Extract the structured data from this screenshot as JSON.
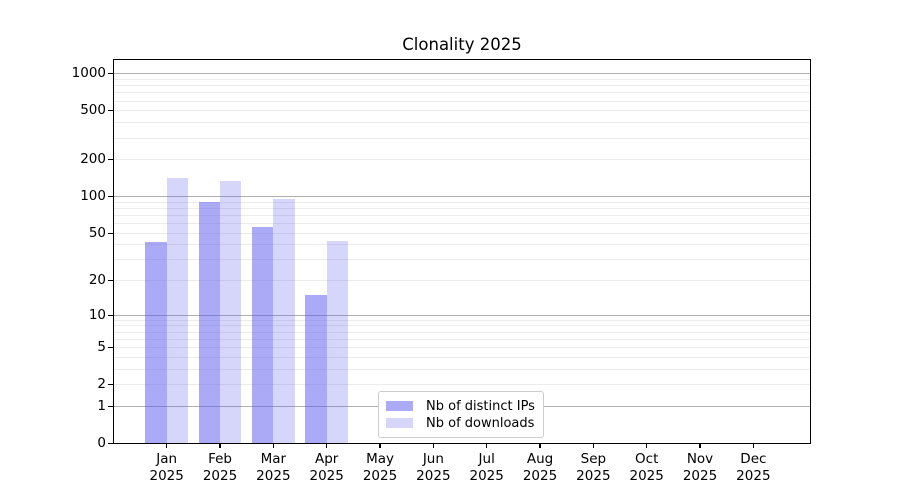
{
  "chart_data": {
    "type": "bar",
    "title": "Clonality 2025",
    "xlabel": "",
    "ylabel": "",
    "x_tick_second_line": "2025",
    "categories": [
      "Jan",
      "Feb",
      "Mar",
      "Apr",
      "May",
      "Jun",
      "Jul",
      "Aug",
      "Sep",
      "Oct",
      "Nov",
      "Dec"
    ],
    "series": [
      {
        "name": "Nb of distinct IPs",
        "color": "rgba(85,85,238,0.5)",
        "solid_color": "#aaaaf6",
        "values": [
          42,
          90,
          56,
          15,
          0,
          0,
          0,
          0,
          0,
          0,
          0,
          0
        ]
      },
      {
        "name": "Nb of downloads",
        "color": "rgba(85,85,238,0.24)",
        "solid_color": "#d6d6fb",
        "values": [
          141,
          135,
          95,
          43,
          0,
          0,
          0,
          0,
          0,
          0,
          0,
          0
        ]
      }
    ],
    "yticks": [
      1000,
      500,
      200,
      100,
      50,
      20,
      10,
      5,
      2,
      1,
      0
    ],
    "scale": "log10(1+x)",
    "ylim": [
      0,
      1320
    ],
    "grid": true,
    "grid_major_at": [
      1,
      10,
      100,
      1000
    ],
    "legend_position": "inside lower-center"
  },
  "colors": {
    "background": "#ffffff",
    "axis": "#000000",
    "tick_text": "#000000",
    "grid_major": "#b0b0b0",
    "grid_minor": "#ececec",
    "legend_border": "#cccccc"
  }
}
